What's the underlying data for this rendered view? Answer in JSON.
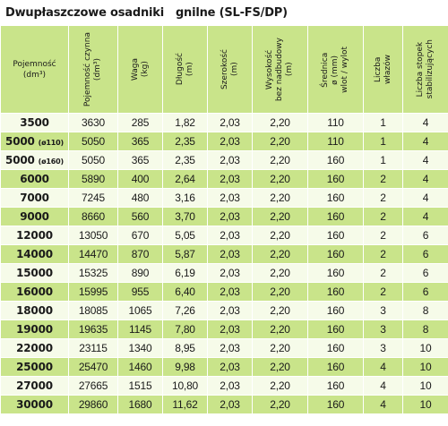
{
  "title": "Dwupłaszczowe osadniki   gnilne (SL-FS/DP)",
  "headers": [
    "Pojemność\n(dm³)",
    "Pojemność czynna\n(dm³)",
    "Waga\n(kg)",
    "Długość\n(m)",
    "Szerokość\n(m)",
    "Wysokość\nbez nadbudowy\n(m)",
    "Średnica\nø (mm)\nwlot / wylot",
    "Liczba\nwłazów",
    "Liczba stopek\nstabilizujących"
  ],
  "rows": [
    {
      "cap": "3500",
      "note": "",
      "active": "3630",
      "weight": "285",
      "length": "1,82",
      "width": "2,03",
      "height": "2,20",
      "dia": "110",
      "hatches": "1",
      "feet": "4"
    },
    {
      "cap": "5000",
      "note": "(ø110)",
      "active": "5050",
      "weight": "365",
      "length": "2,35",
      "width": "2,03",
      "height": "2,20",
      "dia": "110",
      "hatches": "1",
      "feet": "4"
    },
    {
      "cap": "5000",
      "note": "(ø160)",
      "active": "5050",
      "weight": "365",
      "length": "2,35",
      "width": "2,03",
      "height": "2,20",
      "dia": "160",
      "hatches": "1",
      "feet": "4"
    },
    {
      "cap": "6000",
      "note": "",
      "active": "5890",
      "weight": "400",
      "length": "2,64",
      "width": "2,03",
      "height": "2,20",
      "dia": "160",
      "hatches": "2",
      "feet": "4"
    },
    {
      "cap": "7000",
      "note": "",
      "active": "7245",
      "weight": "480",
      "length": "3,16",
      "width": "2,03",
      "height": "2,20",
      "dia": "160",
      "hatches": "2",
      "feet": "4"
    },
    {
      "cap": "9000",
      "note": "",
      "active": "8660",
      "weight": "560",
      "length": "3,70",
      "width": "2,03",
      "height": "2,20",
      "dia": "160",
      "hatches": "2",
      "feet": "4"
    },
    {
      "cap": "12000",
      "note": "",
      "active": "13050",
      "weight": "670",
      "length": "5,05",
      "width": "2,03",
      "height": "2,20",
      "dia": "160",
      "hatches": "2",
      "feet": "6"
    },
    {
      "cap": "14000",
      "note": "",
      "active": "14470",
      "weight": "870",
      "length": "5,87",
      "width": "2,03",
      "height": "2,20",
      "dia": "160",
      "hatches": "2",
      "feet": "6"
    },
    {
      "cap": "15000",
      "note": "",
      "active": "15325",
      "weight": "890",
      "length": "6,19",
      "width": "2,03",
      "height": "2,20",
      "dia": "160",
      "hatches": "2",
      "feet": "6"
    },
    {
      "cap": "16000",
      "note": "",
      "active": "15995",
      "weight": "955",
      "length": "6,40",
      "width": "2,03",
      "height": "2,20",
      "dia": "160",
      "hatches": "2",
      "feet": "6"
    },
    {
      "cap": "18000",
      "note": "",
      "active": "18085",
      "weight": "1065",
      "length": "7,26",
      "width": "2,03",
      "height": "2,20",
      "dia": "160",
      "hatches": "3",
      "feet": "8"
    },
    {
      "cap": "19000",
      "note": "",
      "active": "19635",
      "weight": "1145",
      "length": "7,80",
      "width": "2,03",
      "height": "2,20",
      "dia": "160",
      "hatches": "3",
      "feet": "8"
    },
    {
      "cap": "22000",
      "note": "",
      "active": "23115",
      "weight": "1340",
      "length": "8,95",
      "width": "2,03",
      "height": "2,20",
      "dia": "160",
      "hatches": "3",
      "feet": "10"
    },
    {
      "cap": "25000",
      "note": "",
      "active": "25470",
      "weight": "1460",
      "length": "9,98",
      "width": "2,03",
      "height": "2,20",
      "dia": "160",
      "hatches": "4",
      "feet": "10"
    },
    {
      "cap": "27000",
      "note": "",
      "active": "27665",
      "weight": "1515",
      "length": "10,80",
      "width": "2,03",
      "height": "2,20",
      "dia": "160",
      "hatches": "4",
      "feet": "10"
    },
    {
      "cap": "30000",
      "note": "",
      "active": "29860",
      "weight": "1680",
      "length": "11,62",
      "width": "2,03",
      "height": "2,20",
      "dia": "160",
      "hatches": "4",
      "feet": "10"
    }
  ],
  "colors": {
    "green": "#c9e48a",
    "light": "#f6fbe9"
  }
}
